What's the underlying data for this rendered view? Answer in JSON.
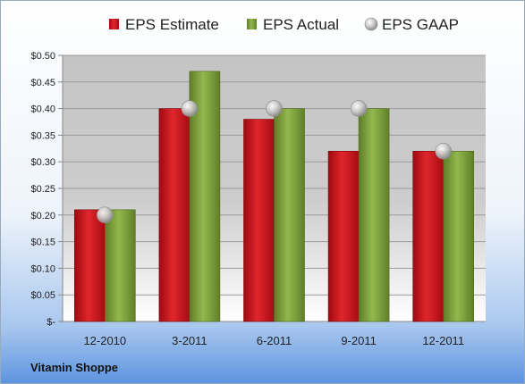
{
  "chart_data": {
    "type": "bar",
    "categories": [
      "12-2010",
      "3-2011",
      "6-2011",
      "9-2011",
      "12-2011"
    ],
    "series": [
      {
        "name": "EPS Estimate",
        "values": [
          0.21,
          0.4,
          0.38,
          0.32,
          0.32
        ],
        "color": "#c8141a",
        "kind": "bar"
      },
      {
        "name": "EPS Actual",
        "values": [
          0.21,
          0.47,
          0.4,
          0.4,
          0.32
        ],
        "color": "#7fa23c",
        "kind": "bar"
      },
      {
        "name": "EPS GAAP",
        "values": [
          0.2,
          0.4,
          0.4,
          0.4,
          0.32
        ],
        "color": "#b8b8b8",
        "kind": "marker"
      }
    ],
    "y_ticks": [
      "$-",
      "$0.05",
      "$0.10",
      "$0.15",
      "$0.20",
      "$0.25",
      "$0.30",
      "$0.35",
      "$0.40",
      "$0.45",
      "$0.50"
    ],
    "ylim": [
      0,
      0.5
    ],
    "grid": true,
    "legend_position": "top"
  },
  "footer": {
    "company": "Vitamin Shoppe"
  }
}
